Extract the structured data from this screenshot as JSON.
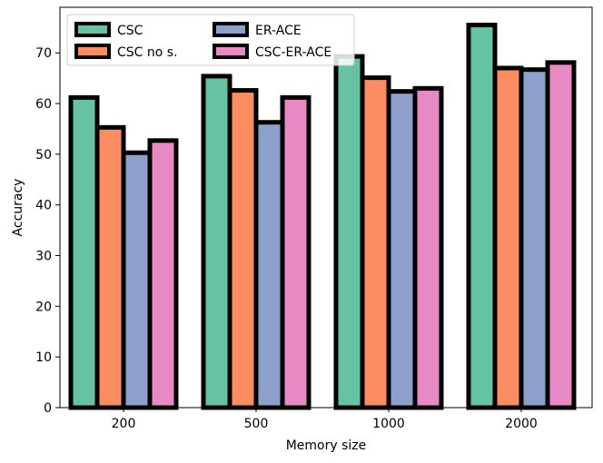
{
  "chart_data": {
    "type": "bar",
    "title": "",
    "xlabel": "Memory size",
    "ylabel": "Accuracy",
    "categories": [
      "200",
      "500",
      "1000",
      "2000"
    ],
    "ylim": [
      0,
      79
    ],
    "yticks": [
      0,
      10,
      20,
      30,
      40,
      50,
      60,
      70
    ],
    "grid": false,
    "legend": {
      "placement": "top-left",
      "columns": 2
    },
    "series": [
      {
        "name": "CSC",
        "color": "#66c2a5",
        "values": [
          61.2,
          65.4,
          69.3,
          75.5
        ]
      },
      {
        "name": "CSC no s.",
        "color": "#fc8d62",
        "values": [
          55.3,
          62.6,
          65.1,
          67.0
        ]
      },
      {
        "name": "ER-ACE",
        "color": "#8da0cb",
        "values": [
          50.3,
          56.3,
          62.4,
          66.7
        ]
      },
      {
        "name": "CSC-ER-ACE",
        "color": "#e78ac3",
        "values": [
          52.7,
          61.2,
          63.0,
          68.1
        ]
      }
    ]
  }
}
